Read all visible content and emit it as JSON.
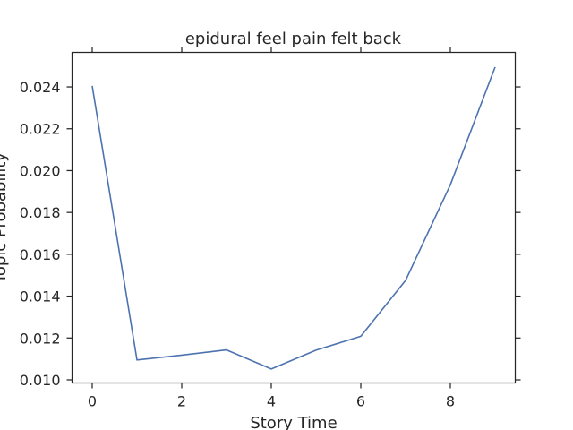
{
  "chart_data": {
    "type": "line",
    "title": "epidural feel pain felt back",
    "xlabel": "Story Time",
    "ylabel": "Topic Probability",
    "x": [
      0,
      1,
      2,
      3,
      4,
      5,
      6,
      7,
      8,
      9
    ],
    "series": [
      {
        "values": [
          0.02405,
          0.01095,
          0.01118,
          0.01143,
          0.01052,
          0.01142,
          0.01208,
          0.01475,
          0.01932,
          0.02495
        ],
        "color": "#4c72b0"
      }
    ],
    "xlim": [
      -0.45,
      9.45
    ],
    "ylim": [
      0.00985,
      0.02565
    ],
    "xticks": [
      0,
      2,
      4,
      6,
      8
    ],
    "yticks": [
      0.01,
      0.012,
      0.014,
      0.016,
      0.018,
      0.02,
      0.022,
      0.024
    ],
    "ytick_labels": [
      "0.010",
      "0.012",
      "0.014",
      "0.016",
      "0.018",
      "0.020",
      "0.022",
      "0.024"
    ],
    "grid": false,
    "legend": "none"
  }
}
